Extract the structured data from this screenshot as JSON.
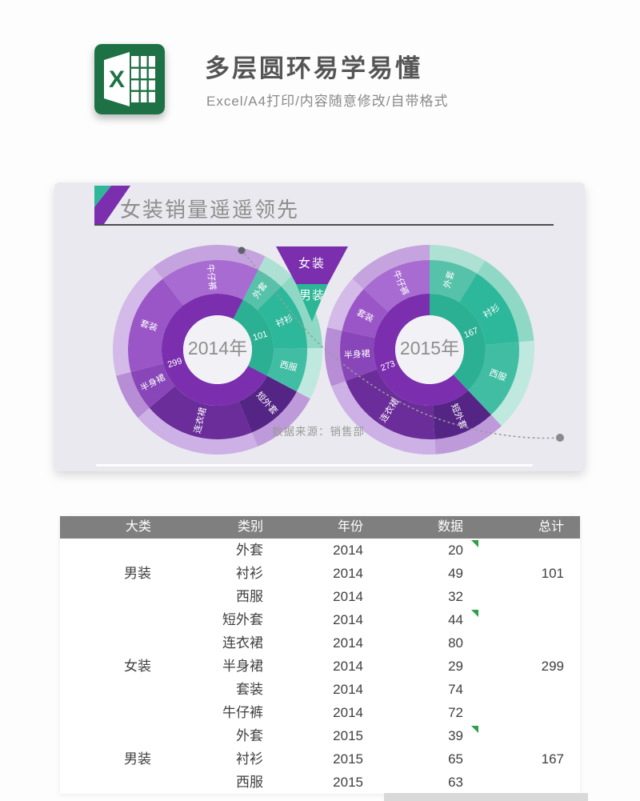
{
  "header": {
    "title": "多层圆环易学易懂",
    "subtitle": "Excel/A4打印/内容随意修改/自带格式",
    "logo_letter": "X"
  },
  "chart_panel": {
    "title": "女装销量遥遥领先",
    "source_note": "数据来源：销售部",
    "legend": [
      {
        "label": "女装",
        "color": "#7b2fae"
      },
      {
        "label": "男装",
        "color": "#2bb695"
      }
    ]
  },
  "chart_data": {
    "type": "pie",
    "subtype": "multilayer-donut",
    "title": "女装销量遥遥领先",
    "legend": [
      "女装",
      "男装"
    ],
    "source_note": "数据来源：销售部",
    "donuts": [
      {
        "center_label": "2014年",
        "rotation": 27,
        "groups": [
          {
            "name": "男装",
            "total": 101,
            "total_label": "101",
            "color": "#2bb093",
            "items": [
              {
                "label": "外套",
                "value": 20,
                "color": "#56c2aa",
                "outer": "#aee0d4"
              },
              {
                "label": "衬衫",
                "value": 49,
                "color": "#2eb89b",
                "outer": "#90d8c6"
              },
              {
                "label": "西服",
                "value": 32,
                "color": "#41bda3",
                "outer": "#bfe8de"
              }
            ]
          },
          {
            "name": "女装",
            "total": 299,
            "total_label": "299",
            "color": "#7b2fae",
            "items": [
              {
                "label": "短外套",
                "value": 44,
                "color": "#552586",
                "outer": "#be9adb"
              },
              {
                "label": "连衣裙",
                "value": 80,
                "color": "#6a2d99",
                "outer": "#cdb0e5"
              },
              {
                "label": "半身裙",
                "value": 29,
                "color": "#8846b8",
                "outer": "#b78dd6"
              },
              {
                "label": "套装",
                "value": 74,
                "color": "#9a56c6",
                "outer": "#d3bae9"
              },
              {
                "label": "牛仔裤",
                "value": 72,
                "color": "#a76bd1",
                "outer": "#c4a3df"
              }
            ]
          }
        ]
      },
      {
        "center_label": "2015年",
        "rotation": 0,
        "groups": [
          {
            "name": "男装",
            "total": 167,
            "total_label": "167",
            "color": "#2bb093",
            "items": [
              {
                "label": "外套",
                "value": 39,
                "color": "#56c2aa",
                "outer": "#aee0d4"
              },
              {
                "label": "衬衫",
                "value": 65,
                "color": "#2eb89b",
                "outer": "#90d8c6"
              },
              {
                "label": "西服",
                "value": 63,
                "color": "#41bda3",
                "outer": "#bfe8de"
              }
            ]
          },
          {
            "name": "女装",
            "total": 273,
            "total_label": "273",
            "color": "#7b2fae",
            "items": [
              {
                "label": "短外套",
                "value": 49,
                "color": "#552586",
                "outer": "#be9adb"
              },
              {
                "label": "连衣裙",
                "value": 89,
                "color": "#6a2d99",
                "outer": "#cdb0e5"
              },
              {
                "label": "半身裙",
                "value": 40,
                "color": "#8846b8",
                "outer": "#b78dd6"
              },
              {
                "label": "套装",
                "value": 37,
                "color": "#9a56c6",
                "outer": "#d3bae9"
              },
              {
                "label": "牛仔裤",
                "value": 58,
                "color": "#a76bd1",
                "outer": "#c4a3df"
              }
            ]
          }
        ]
      }
    ]
  },
  "table": {
    "headers": [
      "大类",
      "类别",
      "年份",
      "数据",
      "总计"
    ],
    "rows": [
      {
        "cat": "",
        "sub": "外套",
        "year": "2014",
        "value": "20",
        "total": "",
        "marker": true
      },
      {
        "cat": "男装",
        "sub": "衬衫",
        "year": "2014",
        "value": "49",
        "total": "101",
        "marker": false
      },
      {
        "cat": "",
        "sub": "西服",
        "year": "2014",
        "value": "32",
        "total": "",
        "marker": false
      },
      {
        "cat": "",
        "sub": "短外套",
        "year": "2014",
        "value": "44",
        "total": "",
        "marker": true
      },
      {
        "cat": "",
        "sub": "连衣裙",
        "year": "2014",
        "value": "80",
        "total": "",
        "marker": false
      },
      {
        "cat": "女装",
        "sub": "半身裙",
        "year": "2014",
        "value": "29",
        "total": "299",
        "marker": false
      },
      {
        "cat": "",
        "sub": "套装",
        "year": "2014",
        "value": "74",
        "total": "",
        "marker": false
      },
      {
        "cat": "",
        "sub": "牛仔裤",
        "year": "2014",
        "value": "72",
        "total": "",
        "marker": false
      },
      {
        "cat": "",
        "sub": "外套",
        "year": "2015",
        "value": "39",
        "total": "",
        "marker": true
      },
      {
        "cat": "男装",
        "sub": "衬衫",
        "year": "2015",
        "value": "65",
        "total": "167",
        "marker": false
      },
      {
        "cat": "",
        "sub": "西服",
        "year": "2015",
        "value": "63",
        "total": "",
        "marker": false
      }
    ]
  },
  "colors": {
    "page_bg": "#fdfdfd",
    "panel_bg": "#e9e9ef",
    "excel_green": "#1e7145",
    "purple": "#7b2fae",
    "teal": "#2bb695",
    "flag_teal": "#2fb79a",
    "table_header_bg": "#7f7f7f",
    "marker_green": "#2f9e44",
    "center_circle": "#f2f1f5",
    "center_text": "#8f8f8f",
    "dash_line": "#9b9b9b"
  }
}
